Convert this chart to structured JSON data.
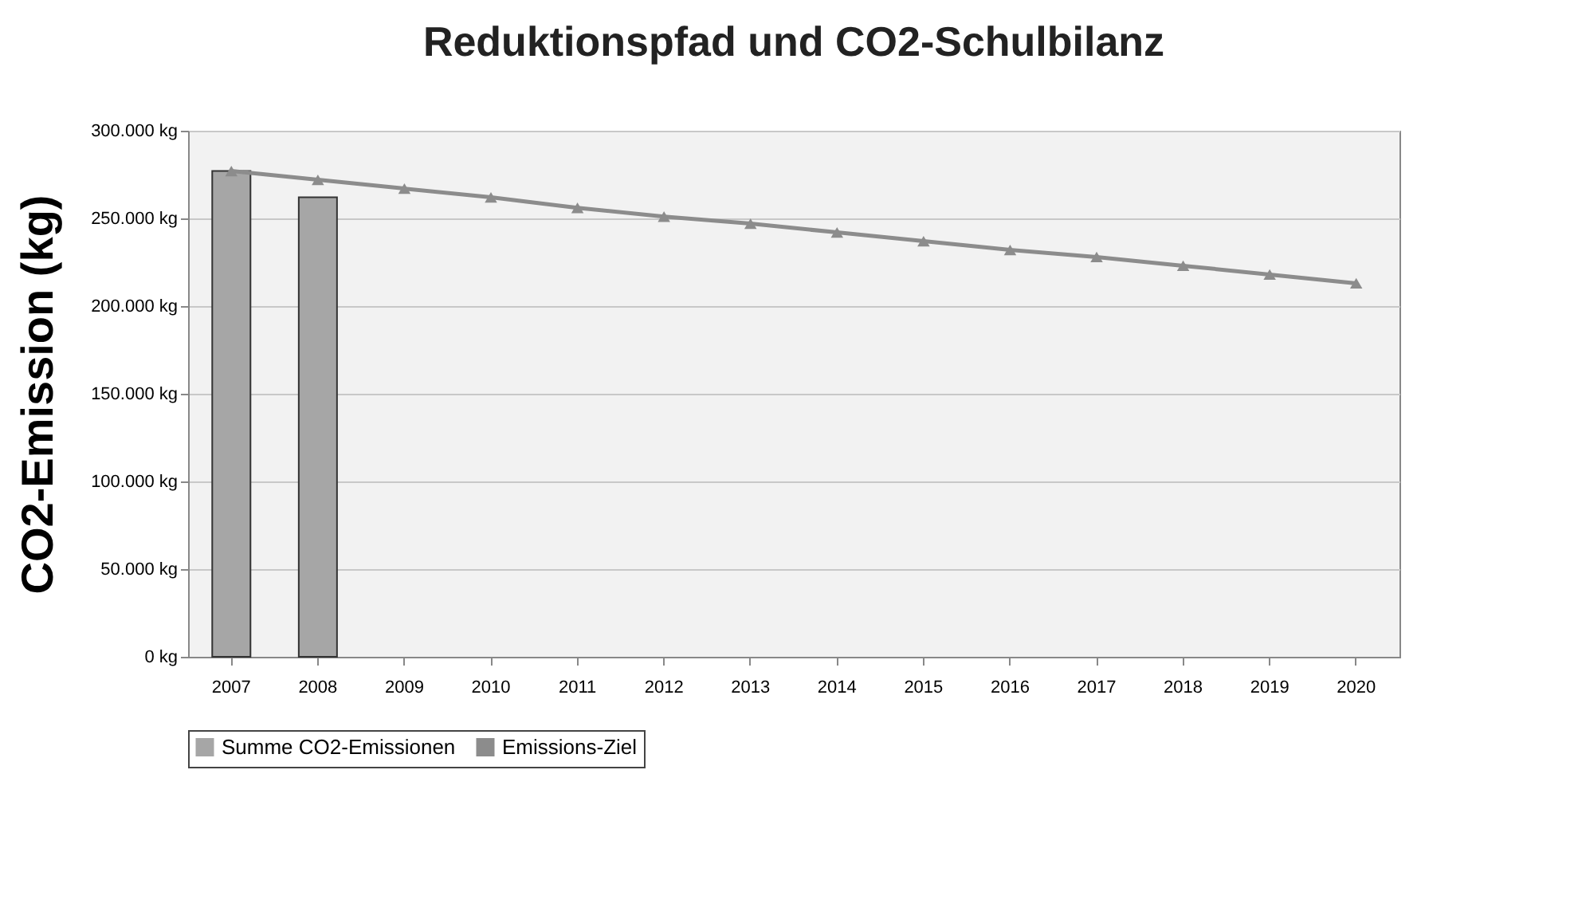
{
  "chart_data": {
    "type": "bar",
    "title": "Reduktionspfad und CO2-Schulbilanz",
    "ylabel": "CO2-Emission (kg)",
    "categories": [
      "2007",
      "2008",
      "2009",
      "2010",
      "2011",
      "2012",
      "2013",
      "2014",
      "2015",
      "2016",
      "2017",
      "2018",
      "2019",
      "2020"
    ],
    "series": [
      {
        "name": "Summe CO2-Emissionen",
        "color": "#a6a6a6",
        "values": [
          277000,
          262000,
          null,
          null,
          null,
          null,
          null,
          null,
          null,
          null,
          null,
          null,
          null,
          null
        ]
      },
      {
        "name": "Emissions-Ziel",
        "type": "line",
        "color": "#8c8c8c",
        "marker": "triangle",
        "values": [
          277000,
          272000,
          267000,
          262000,
          256000,
          251000,
          247000,
          242000,
          237000,
          232000,
          228000,
          223000,
          218000,
          213000
        ]
      }
    ],
    "ylim": [
      0,
      300000
    ],
    "yticks": [
      {
        "value": 0,
        "label": "0 kg"
      },
      {
        "value": 50000,
        "label": "50.000 kg"
      },
      {
        "value": 100000,
        "label": "100.000 kg"
      },
      {
        "value": 150000,
        "label": "150.000 kg"
      },
      {
        "value": 200000,
        "label": "200.000 kg"
      },
      {
        "value": 250000,
        "label": "250.000 kg"
      },
      {
        "value": 300000,
        "label": "300.000 kg"
      }
    ],
    "grid": "y",
    "legend": "bottom"
  }
}
